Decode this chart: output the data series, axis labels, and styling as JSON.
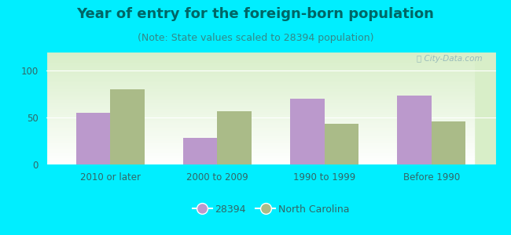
{
  "title": "Year of entry for the foreign-born population",
  "subtitle": "(Note: State values scaled to 28394 population)",
  "categories": [
    "2010 or later",
    "2000 to 2009",
    "1990 to 1999",
    "Before 1990"
  ],
  "values_28394": [
    55,
    28,
    70,
    73
  ],
  "values_nc": [
    80,
    57,
    43,
    46
  ],
  "bar_color_28394": "#bb99cc",
  "bar_color_nc": "#aabb88",
  "background_outer": "#00eeff",
  "background_inner_top": "#ffffff",
  "background_inner_bottom": "#d8eec8",
  "ylim": [
    0,
    120
  ],
  "yticks": [
    0,
    50,
    100
  ],
  "legend_label_1": "28394",
  "legend_label_2": "North Carolina",
  "bar_width": 0.32,
  "title_fontsize": 13,
  "subtitle_fontsize": 9,
  "tick_fontsize": 8.5,
  "legend_fontsize": 9,
  "title_color": "#006666",
  "subtitle_color": "#338888",
  "tick_color": "#336666",
  "watermark_color": "#99bbbb"
}
